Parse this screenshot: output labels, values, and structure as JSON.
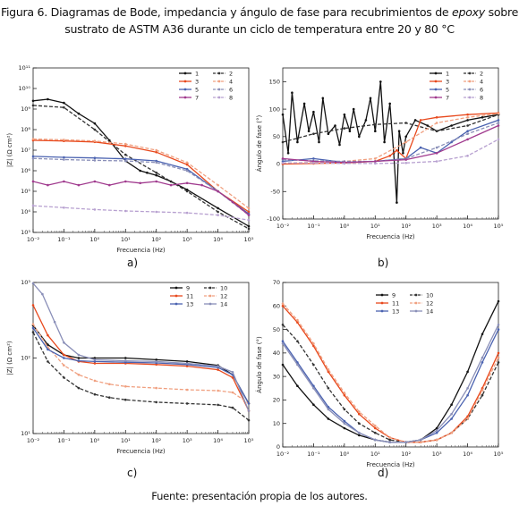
{
  "figure": {
    "title_line1_a": "Figura 6. Diagramas de Bode, impedancia y ángulo de fase para recubrimientos de ",
    "title_line1_italic": "epoxy",
    "title_line1_b": " sobre",
    "title_line2": "sustrato de ASTM A36 durante un ciclo de temperatura entre 20 y 80 °C",
    "source": "Fuente: presentación propia de los autores.",
    "panel_labels": [
      "a)",
      "b)",
      "c)",
      "d)"
    ]
  },
  "chart_data": [
    {
      "id": "a",
      "type": "line",
      "xlabel": "Frecuencia (Hz)",
      "ylabel": "|Z| (Ω cm²)",
      "x_scale": "log",
      "y_scale": "log",
      "xlim": [
        0.01,
        100000
      ],
      "ylim": [
        1000,
        100000000000
      ],
      "x_ticks": [
        "10⁻²",
        "10⁻¹",
        "10⁰",
        "10¹",
        "10²",
        "10³",
        "10⁴",
        "10⁵"
      ],
      "y_ticks": [
        "10³",
        "10⁴",
        "10⁵",
        "10⁶",
        "10⁷",
        "10⁸",
        "10⁹",
        "10¹⁰",
        "10¹¹"
      ],
      "legend_position": "top-right",
      "series": [
        {
          "name": "1",
          "color": "#111111",
          "dash": "solid",
          "x": [
            0.01,
            0.03,
            0.1,
            0.3,
            1,
            3,
            10,
            30,
            50,
            100,
            300,
            1000,
            10000,
            100000
          ],
          "y": [
            2500000000.0,
            3000000000.0,
            2000000000.0,
            600000000.0,
            200000000.0,
            30000000.0,
            3000000.0,
            1000000.0,
            800000.0,
            600000.0,
            300000.0,
            120000.0,
            15000.0,
            2000.0
          ]
        },
        {
          "name": "2",
          "color": "#333333",
          "dash": "dashed",
          "x": [
            0.01,
            0.1,
            1,
            10,
            100,
            1000,
            10000,
            100000
          ],
          "y": [
            1500000000.0,
            1200000000.0,
            100000000.0,
            6000000.0,
            800000.0,
            100000.0,
            10000.0,
            1500.0
          ]
        },
        {
          "name": "3",
          "color": "#e8491d",
          "dash": "solid",
          "x": [
            0.01,
            0.1,
            1,
            10,
            100,
            1000,
            10000,
            100000
          ],
          "y": [
            30000000.0,
            28000000.0,
            25000000.0,
            16000000.0,
            8000000.0,
            2000000.0,
            100000.0,
            10000.0
          ]
        },
        {
          "name": "4",
          "color": "#f0a080",
          "dash": "dashed",
          "x": [
            0.01,
            0.1,
            1,
            10,
            100,
            1000,
            10000,
            100000
          ],
          "y": [
            35000000.0,
            32000000.0,
            28000000.0,
            20000000.0,
            10000000.0,
            2500000.0,
            200000.0,
            15000.0
          ]
        },
        {
          "name": "5",
          "color": "#4a62b0",
          "dash": "solid",
          "x": [
            0.01,
            0.1,
            1,
            10,
            100,
            1000,
            10000,
            100000
          ],
          "y": [
            5000000.0,
            4500000.0,
            4200000.0,
            3800000.0,
            3000000.0,
            1200000.0,
            100000.0,
            8000.0
          ]
        },
        {
          "name": "6",
          "color": "#8a8fb8",
          "dash": "dashed",
          "x": [
            0.01,
            0.1,
            1,
            10,
            100,
            1000,
            10000,
            100000
          ],
          "y": [
            4000000.0,
            3500000.0,
            3200000.0,
            3000000.0,
            2500000.0,
            1000000.0,
            100000.0,
            7000.0
          ]
        },
        {
          "name": "7",
          "color": "#a03a8e",
          "dash": "solid",
          "x": [
            0.01,
            0.03,
            0.1,
            0.3,
            1,
            3,
            10,
            30,
            100,
            300,
            1000,
            3000,
            10000,
            30000,
            100000
          ],
          "y": [
            300000.0,
            200000.0,
            300000.0,
            200000.0,
            300000.0,
            200000.0,
            300000.0,
            250000.0,
            300000.0,
            200000.0,
            250000.0,
            200000.0,
            100000.0,
            30000.0,
            7000.0
          ]
        },
        {
          "name": "8",
          "color": "#b7a0d0",
          "dash": "dashed",
          "x": [
            0.01,
            0.1,
            1,
            10,
            100,
            1000,
            10000,
            100000
          ],
          "y": [
            20000.0,
            16000.0,
            13000.0,
            11000.0,
            10000.0,
            9000.0,
            7000.0,
            4000.0
          ]
        }
      ]
    },
    {
      "id": "b",
      "type": "line",
      "xlabel": "Frecuencia (Hz)",
      "ylabel": "Ángulo de fase (°)",
      "x_scale": "log",
      "y_scale": "linear",
      "xlim": [
        0.01,
        100000
      ],
      "ylim": [
        -100,
        175
      ],
      "x_ticks": [
        "10⁻²",
        "10⁻¹",
        "10⁰",
        "10¹",
        "10²",
        "10³",
        "10⁴",
        "10⁵"
      ],
      "y_ticks": [
        "-100",
        "-50",
        "0",
        "50",
        "100",
        "150"
      ],
      "y_tick_values": [
        -100,
        -50,
        0,
        50,
        100,
        150
      ],
      "legend_position": "top-right",
      "series": [
        {
          "name": "1",
          "color": "#111111",
          "dash": "solid",
          "x": [
            0.01,
            0.015,
            0.02,
            0.03,
            0.05,
            0.07,
            0.1,
            0.15,
            0.2,
            0.3,
            0.5,
            0.7,
            1,
            1.5,
            2,
            3,
            5,
            7,
            10,
            15,
            20,
            30,
            40,
            50,
            60,
            80,
            100,
            200,
            500,
            1000,
            3000,
            10000,
            30000,
            100000
          ],
          "y": [
            90,
            20,
            130,
            40,
            110,
            60,
            95,
            40,
            120,
            55,
            70,
            35,
            90,
            60,
            100,
            50,
            80,
            120,
            60,
            150,
            40,
            110,
            20,
            -70,
            60,
            20,
            50,
            80,
            70,
            60,
            70,
            80,
            85,
            90
          ]
        },
        {
          "name": "2",
          "color": "#333333",
          "dash": "dashed",
          "x": [
            0.01,
            0.1,
            1,
            10,
            100,
            1000,
            10000,
            100000
          ],
          "y": [
            40,
            55,
            65,
            72,
            75,
            60,
            70,
            90
          ]
        },
        {
          "name": "3",
          "color": "#e8491d",
          "dash": "solid",
          "x": [
            0.01,
            0.1,
            1,
            10,
            30,
            50,
            100,
            300,
            1000,
            10000,
            100000
          ],
          "y": [
            0,
            1,
            2,
            5,
            15,
            25,
            10,
            80,
            85,
            90,
            93
          ]
        },
        {
          "name": "4",
          "color": "#f0a080",
          "dash": "dashed",
          "x": [
            0.01,
            0.1,
            1,
            10,
            100,
            1000,
            10000,
            100000
          ],
          "y": [
            2,
            3,
            5,
            10,
            40,
            75,
            85,
            92
          ]
        },
        {
          "name": "5",
          "color": "#4a62b0",
          "dash": "solid",
          "x": [
            0.01,
            0.1,
            1,
            10,
            100,
            300,
            1000,
            3000,
            10000,
            100000
          ],
          "y": [
            5,
            10,
            3,
            5,
            10,
            30,
            20,
            40,
            60,
            80
          ]
        },
        {
          "name": "6",
          "color": "#8a8fb8",
          "dash": "dashed",
          "x": [
            0.01,
            0.1,
            1,
            10,
            100,
            1000,
            10000,
            100000
          ],
          "y": [
            8,
            6,
            5,
            5,
            10,
            30,
            55,
            75
          ]
        },
        {
          "name": "7",
          "color": "#a03a8e",
          "dash": "solid",
          "x": [
            0.01,
            0.1,
            1,
            10,
            100,
            1000,
            10000,
            100000
          ],
          "y": [
            10,
            5,
            3,
            5,
            8,
            20,
            45,
            70
          ]
        },
        {
          "name": "8",
          "color": "#b7a0d0",
          "dash": "dashed",
          "x": [
            0.01,
            0.1,
            1,
            10,
            100,
            1000,
            10000,
            100000
          ],
          "y": [
            2,
            2,
            1,
            1,
            2,
            5,
            15,
            45
          ]
        }
      ]
    },
    {
      "id": "c",
      "type": "line",
      "xlabel": "Frecuencia (Hz)",
      "ylabel": "|Z| (Ω cm²)",
      "x_scale": "log",
      "y_scale": "log",
      "xlim": [
        0.01,
        100000
      ],
      "ylim": [
        10,
        1000
      ],
      "x_ticks": [
        "10⁻²",
        "10⁻¹",
        "10⁰",
        "10¹",
        "10²",
        "10³",
        "10⁴",
        "10⁵"
      ],
      "y_ticks": [
        "10¹",
        "10²",
        "10³"
      ],
      "legend_position": "top-right",
      "series": [
        {
          "name": "9",
          "color": "#111111",
          "dash": "solid",
          "x": [
            0.01,
            0.03,
            0.1,
            0.3,
            1,
            10,
            100,
            1000,
            10000,
            30000,
            100000
          ],
          "y": [
            270,
            150,
            110,
            100,
            100,
            100,
            95,
            90,
            80,
            60,
            25
          ]
        },
        {
          "name": "10",
          "color": "#333333",
          "dash": "dashed",
          "x": [
            0.01,
            0.03,
            0.1,
            0.3,
            1,
            3,
            10,
            100,
            1000,
            10000,
            30000,
            100000
          ],
          "y": [
            220,
            90,
            55,
            40,
            33,
            30,
            28,
            26,
            25,
            24,
            22,
            15
          ]
        },
        {
          "name": "11",
          "color": "#e8491d",
          "dash": "solid",
          "x": [
            0.01,
            0.03,
            0.1,
            0.3,
            1,
            10,
            100,
            1000,
            10000,
            30000,
            100000
          ],
          "y": [
            500,
            200,
            110,
            90,
            85,
            85,
            82,
            78,
            70,
            55,
            20
          ]
        },
        {
          "name": "12",
          "color": "#f0a080",
          "dash": "dashed",
          "x": [
            0.01,
            0.03,
            0.1,
            0.3,
            1,
            3,
            10,
            100,
            1000,
            10000,
            30000,
            100000
          ],
          "y": [
            280,
            140,
            80,
            60,
            50,
            45,
            42,
            40,
            38,
            37,
            35,
            25
          ]
        },
        {
          "name": "13",
          "color": "#4a62b0",
          "dash": "solid",
          "x": [
            0.01,
            0.03,
            0.1,
            0.3,
            1,
            10,
            100,
            1000,
            10000,
            30000,
            100000
          ],
          "y": [
            250,
            130,
            100,
            92,
            90,
            88,
            86,
            82,
            75,
            60,
            25
          ]
        },
        {
          "name": "14",
          "color": "#8a8fb8",
          "dash": "solid",
          "x": [
            0.01,
            0.02,
            0.05,
            0.1,
            0.3,
            1,
            10,
            100,
            1000,
            10000,
            30000,
            100000
          ],
          "y": [
            1100,
            700,
            300,
            160,
            110,
            95,
            92,
            90,
            85,
            78,
            65,
            20
          ]
        }
      ]
    },
    {
      "id": "d",
      "type": "line",
      "xlabel": "Frecuencia (Hz)",
      "ylabel": "Ángulo de fase (°)",
      "x_scale": "log",
      "y_scale": "linear",
      "xlim": [
        0.01,
        100000
      ],
      "ylim": [
        0,
        70
      ],
      "x_ticks": [
        "10⁻²",
        "10⁻¹",
        "10⁰",
        "10¹",
        "10²",
        "10³",
        "10⁴",
        "10⁵"
      ],
      "y_ticks": [
        "0",
        "10",
        "20",
        "30",
        "40",
        "50",
        "60",
        "70"
      ],
      "y_tick_values": [
        0,
        10,
        20,
        30,
        40,
        50,
        60,
        70
      ],
      "legend_position": "top-right",
      "series": [
        {
          "name": "9",
          "color": "#111111",
          "dash": "solid",
          "x": [
            0.01,
            0.03,
            0.1,
            0.3,
            1,
            3,
            10,
            30,
            100,
            300,
            1000,
            3000,
            10000,
            30000,
            100000
          ],
          "y": [
            35,
            26,
            18,
            12,
            8,
            5,
            3,
            2,
            2,
            3,
            8,
            18,
            32,
            48,
            62
          ]
        },
        {
          "name": "10",
          "color": "#333333",
          "dash": "dashed",
          "x": [
            0.01,
            0.03,
            0.1,
            0.3,
            1,
            3,
            10,
            30,
            100,
            300,
            1000,
            3000,
            10000,
            30000,
            100000
          ],
          "y": [
            52,
            45,
            35,
            25,
            16,
            10,
            6,
            3,
            2,
            2,
            3,
            6,
            12,
            22,
            36
          ]
        },
        {
          "name": "11",
          "color": "#e8491d",
          "dash": "solid",
          "x": [
            0.01,
            0.03,
            0.1,
            0.3,
            1,
            3,
            10,
            30,
            100,
            300,
            1000,
            3000,
            10000,
            30000,
            100000
          ],
          "y": [
            60,
            53,
            43,
            32,
            22,
            14,
            8,
            4,
            2,
            2,
            3,
            6,
            13,
            25,
            40
          ]
        },
        {
          "name": "12",
          "color": "#f0a080",
          "dash": "dashed",
          "x": [
            0.01,
            0.03,
            0.1,
            0.3,
            1,
            3,
            10,
            30,
            100,
            300,
            1000,
            3000,
            10000,
            30000,
            100000
          ],
          "y": [
            61,
            54,
            44,
            33,
            23,
            15,
            9,
            4,
            2,
            2,
            3,
            6,
            12,
            24,
            38
          ]
        },
        {
          "name": "13",
          "color": "#4a62b0",
          "dash": "solid",
          "x": [
            0.01,
            0.03,
            0.1,
            0.3,
            1,
            3,
            10,
            30,
            100,
            300,
            1000,
            3000,
            10000,
            30000,
            100000
          ],
          "y": [
            45,
            36,
            26,
            17,
            11,
            6,
            3,
            2,
            2,
            3,
            6,
            12,
            22,
            36,
            50
          ]
        },
        {
          "name": "14",
          "color": "#8a8fb8",
          "dash": "solid",
          "x": [
            0.01,
            0.03,
            0.1,
            0.3,
            1,
            3,
            10,
            30,
            100,
            300,
            1000,
            3000,
            10000,
            30000,
            100000
          ],
          "y": [
            44,
            35,
            25,
            16,
            10,
            6,
            3,
            2,
            2,
            3,
            7,
            14,
            25,
            38,
            52
          ]
        }
      ]
    }
  ]
}
